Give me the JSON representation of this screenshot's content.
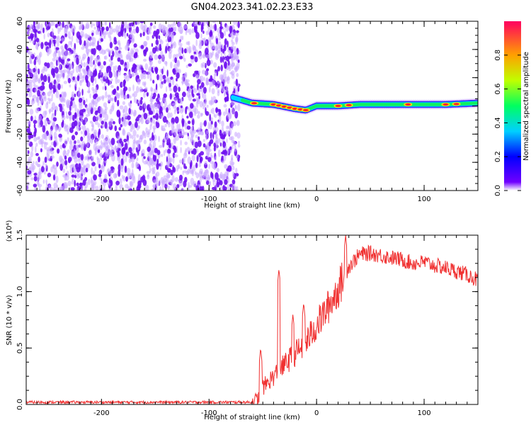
{
  "title": "GN04.2023.341.02.23.E33",
  "colors": {
    "snr_line": "#f03030",
    "scatter": "#7a1ff0",
    "background": "#ffffff",
    "axis": "#000000"
  },
  "chart_data": [
    {
      "type": "heatmap",
      "title": "GN04.2023.341.02.23.E33",
      "xlabel": "Height of straight line (km)",
      "ylabel": "Frequency (Hz)",
      "xlim": [
        -270,
        150
      ],
      "ylim": [
        -60,
        60
      ],
      "xticks": [
        -200,
        -100,
        0,
        100
      ],
      "xtick_labels": [
        "-200",
        "-100",
        "0",
        "100"
      ],
      "yticks": [
        -60,
        -40,
        -20,
        0,
        20,
        40,
        60
      ],
      "ytick_labels": [
        "-60",
        "-40",
        "-20",
        "0",
        "20",
        "40",
        "60"
      ],
      "noise_region_x": [
        -270,
        -75
      ],
      "ridge": {
        "x": [
          -78,
          -60,
          -40,
          -20,
          -10,
          0,
          20,
          40,
          60,
          80,
          100,
          120,
          150
        ],
        "freq_hz": [
          6,
          2,
          1,
          -2,
          -3,
          0,
          0,
          1,
          1,
          1,
          1,
          1,
          2
        ],
        "amplitude": [
          0.3,
          0.5,
          0.55,
          0.6,
          0.9,
          0.5,
          0.85,
          0.4,
          0.45,
          0.75,
          0.45,
          0.55,
          0.6
        ],
        "peak_x": [
          -58,
          -40,
          -35,
          -30,
          -25,
          -20,
          -15,
          -10,
          20,
          30,
          85,
          120,
          130
        ]
      },
      "colorbar": {
        "label": "Normalized spectral amplitude",
        "range": [
          0,
          1
        ],
        "ticks": [
          0.0,
          0.2,
          0.4,
          0.6,
          0.8
        ],
        "tick_labels": [
          "0.0",
          "0.2",
          "0.4",
          "0.6",
          "0.8"
        ]
      }
    },
    {
      "type": "line",
      "xlabel": "Height of straight line (km)",
      "ylabel": "SNR (10 * v/v)",
      "scale_label": "(x10⁴)",
      "xlim": [
        -270,
        150
      ],
      "ylim": [
        0,
        1.5
      ],
      "xticks": [
        -200,
        -100,
        0,
        100
      ],
      "xtick_labels": [
        "-200",
        "-100",
        "0",
        "100"
      ],
      "yticks": [
        0.0,
        0.5,
        1.0,
        1.5
      ],
      "ytick_labels": [
        "0.0",
        "0.5",
        "1.0",
        "1.5"
      ],
      "series": [
        {
          "name": "SNR",
          "x": [
            -270,
            -60,
            -55,
            -50,
            -40,
            -30,
            -20,
            -10,
            0,
            10,
            20,
            30,
            40,
            50,
            60,
            70,
            80,
            90,
            100,
            110,
            120,
            130,
            140,
            150
          ],
          "values": [
            0.02,
            0.02,
            0.05,
            0.15,
            0.25,
            0.35,
            0.45,
            0.55,
            0.7,
            0.85,
            1.02,
            1.22,
            1.33,
            1.34,
            1.32,
            1.3,
            1.28,
            1.25,
            1.26,
            1.23,
            1.21,
            1.18,
            1.15,
            1.1
          ],
          "spikes": [
            {
              "x": -52,
              "value": 0.5
            },
            {
              "x": -35,
              "value": 1.2
            },
            {
              "x": -22,
              "value": 0.8
            },
            {
              "x": -12,
              "value": 0.9
            },
            {
              "x": 27,
              "value": 1.5
            }
          ]
        }
      ]
    }
  ]
}
